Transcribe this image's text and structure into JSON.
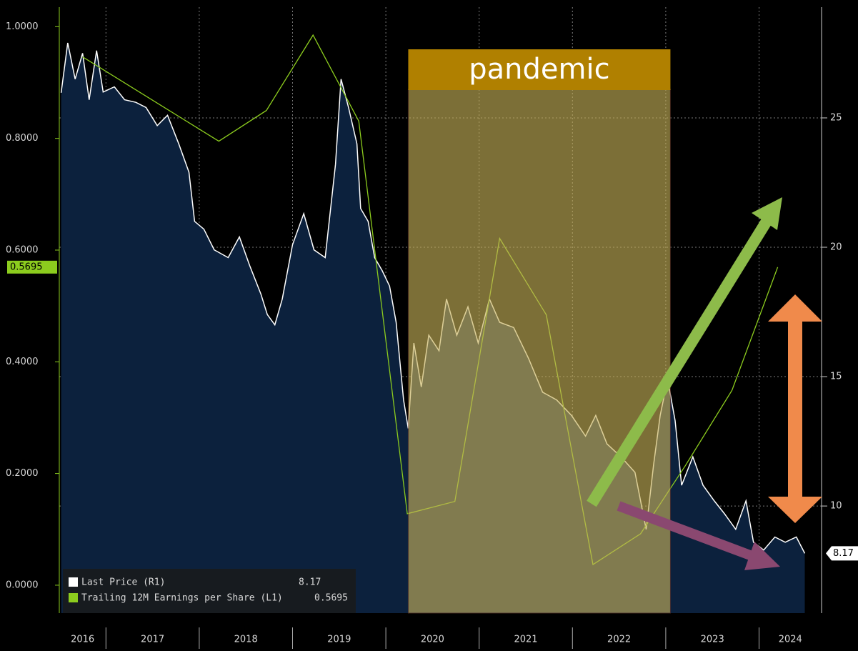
{
  "chart_data": {
    "type": "line",
    "xlim": [
      2016.5,
      2024.67
    ],
    "xticks": [
      2017,
      2018,
      2019,
      2020,
      2021,
      2022,
      2023,
      2024
    ],
    "year_labels": [
      "2016",
      "2017",
      "2018",
      "2019",
      "2020",
      "2021",
      "2022",
      "2023",
      "2024"
    ],
    "ylim": [
      -0.05,
      1.035
    ],
    "yticks": [
      {
        "value": 0,
        "label": "0.0000"
      },
      {
        "value": 0.2,
        "label": "0.2000"
      },
      {
        "value": 0.4,
        "label": "0.4000"
      },
      {
        "value": 0.6,
        "label": "0.6000"
      },
      {
        "value": 0.8,
        "label": "0.8000"
      },
      {
        "value": 1.0,
        "label": "1.0000"
      }
    ],
    "y2lim": [
      5.86,
      29.28
    ],
    "y2ticks": [
      10,
      15,
      20,
      25
    ],
    "grid": true,
    "series": [
      {
        "name": "Last Price (R1)",
        "color": "#ffffff",
        "fill": "#0c213d",
        "axis": "y2",
        "last_value": 8.17,
        "x": [
          2016.52,
          2016.59,
          2016.67,
          2016.75,
          2016.82,
          2016.9,
          2016.97,
          2017.09,
          2017.2,
          2017.32,
          2017.43,
          2017.55,
          2017.66,
          2017.78,
          2017.89,
          2017.95,
          2018.05,
          2018.16,
          2018.31,
          2018.43,
          2018.54,
          2018.66,
          2018.73,
          2018.81,
          2018.89,
          2019.0,
          2019.12,
          2019.23,
          2019.35,
          2019.46,
          2019.52,
          2019.6,
          2019.69,
          2019.73,
          2019.81,
          2019.88,
          2019.96,
          2020.04,
          2020.11,
          2020.19,
          2020.24,
          2020.3,
          2020.38,
          2020.46,
          2020.57,
          2020.65,
          2020.76,
          2020.88,
          2020.99,
          2021.11,
          2021.22,
          2021.37,
          2021.53,
          2021.68,
          2021.83,
          2021.99,
          2022.14,
          2022.25,
          2022.37,
          2022.52,
          2022.67,
          2022.79,
          2022.87,
          2022.94,
          2023.02,
          2023.1,
          2023.17,
          2023.29,
          2023.4,
          2023.52,
          2023.63,
          2023.75,
          2023.86,
          2023.94,
          2024.05,
          2024.17,
          2024.28,
          2024.4,
          2024.49
        ],
        "values": [
          25.97,
          27.9,
          26.5,
          27.5,
          25.7,
          27.6,
          26.0,
          26.2,
          25.7,
          25.6,
          25.4,
          24.7,
          25.1,
          24.0,
          22.9,
          21.0,
          20.7,
          19.9,
          19.6,
          20.4,
          19.3,
          18.2,
          17.4,
          17.0,
          18.0,
          20.1,
          21.3,
          19.9,
          19.6,
          23.2,
          26.5,
          25.4,
          24.0,
          21.5,
          21.0,
          19.6,
          19.1,
          18.5,
          17.1,
          14.1,
          13.0,
          16.3,
          14.6,
          16.6,
          16.0,
          18.0,
          16.6,
          17.7,
          16.3,
          18.0,
          17.1,
          16.9,
          15.7,
          14.4,
          14.1,
          13.5,
          12.7,
          13.5,
          12.4,
          11.9,
          11.3,
          9.1,
          11.6,
          13.5,
          14.9,
          13.3,
          10.8,
          11.9,
          10.8,
          10.2,
          9.7,
          9.1,
          10.2,
          8.6,
          8.3,
          8.8,
          8.6,
          8.8,
          8.17
        ]
      },
      {
        "name": "Trailing 12M Earnings per Share (L1)",
        "color": "#8ccc1e",
        "axis": "y",
        "last_value": 0.5695,
        "x": [
          2016.75,
          2018.21,
          2018.72,
          2019.22,
          2019.71,
          2020.23,
          2020.74,
          2021.22,
          2021.72,
          2022.22,
          2022.73,
          2023.21,
          2023.71,
          2024.2
        ],
        "values": [
          0.946,
          0.795,
          0.85,
          0.985,
          0.831,
          0.128,
          0.15,
          0.621,
          0.484,
          0.037,
          0.092,
          0.214,
          0.349,
          0.5695
        ]
      }
    ],
    "shaded_range": [
      2020.24,
      2023.05
    ],
    "annotation": "pandemic"
  }
}
